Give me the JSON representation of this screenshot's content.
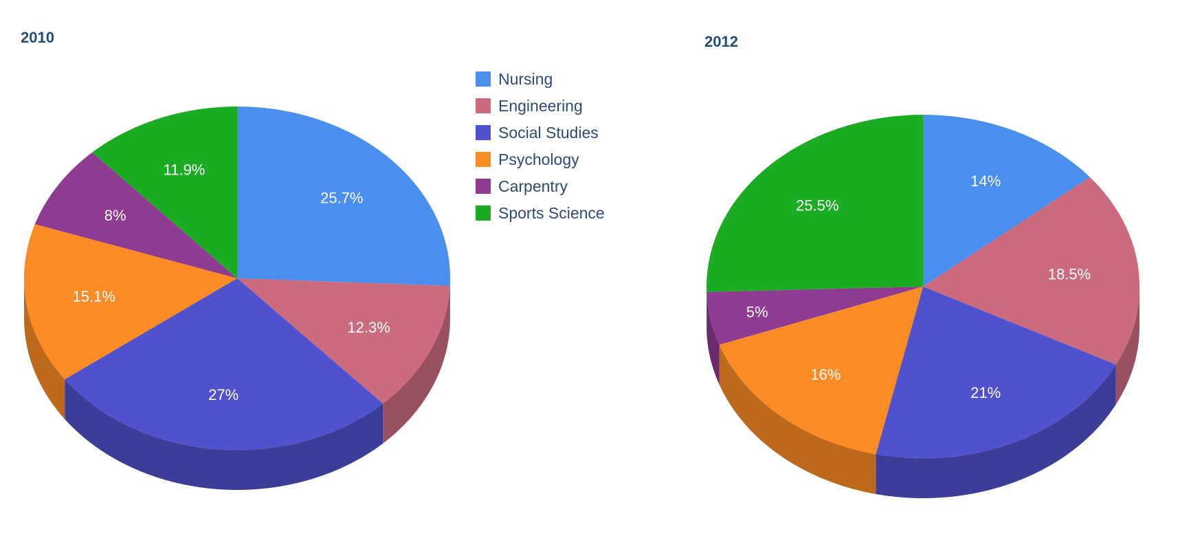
{
  "legend": {
    "items": [
      {
        "label": "Nursing",
        "color": "#4a8fed"
      },
      {
        "label": "Engineering",
        "color": "#cc6b7e"
      },
      {
        "label": "Social Studies",
        "color": "#5051cc"
      },
      {
        "label": "Psychology",
        "color": "#fb8c25"
      },
      {
        "label": "Carpentry",
        "color": "#8e3b91"
      },
      {
        "label": "Sports Science",
        "color": "#1cac23"
      }
    ]
  },
  "chart_data": [
    {
      "type": "pie",
      "title": "2010",
      "style": "3d",
      "categories": [
        "Nursing",
        "Engineering",
        "Social Studies",
        "Psychology",
        "Carpentry",
        "Sports Science"
      ],
      "values": [
        25.7,
        12.3,
        27,
        15.1,
        8,
        11.9
      ],
      "labels": [
        "25.7%",
        "12.3%",
        "27%",
        "15.1%",
        "8%",
        "11.9%"
      ]
    },
    {
      "type": "pie",
      "title": "2012",
      "style": "3d",
      "categories": [
        "Nursing",
        "Engineering",
        "Social Studies",
        "Psychology",
        "Carpentry",
        "Sports Science"
      ],
      "values": [
        14,
        18.5,
        21,
        16,
        5,
        25.5
      ],
      "labels": [
        "14%",
        "18.5%",
        "21%",
        "16%",
        "5%",
        "25.5%"
      ]
    }
  ]
}
